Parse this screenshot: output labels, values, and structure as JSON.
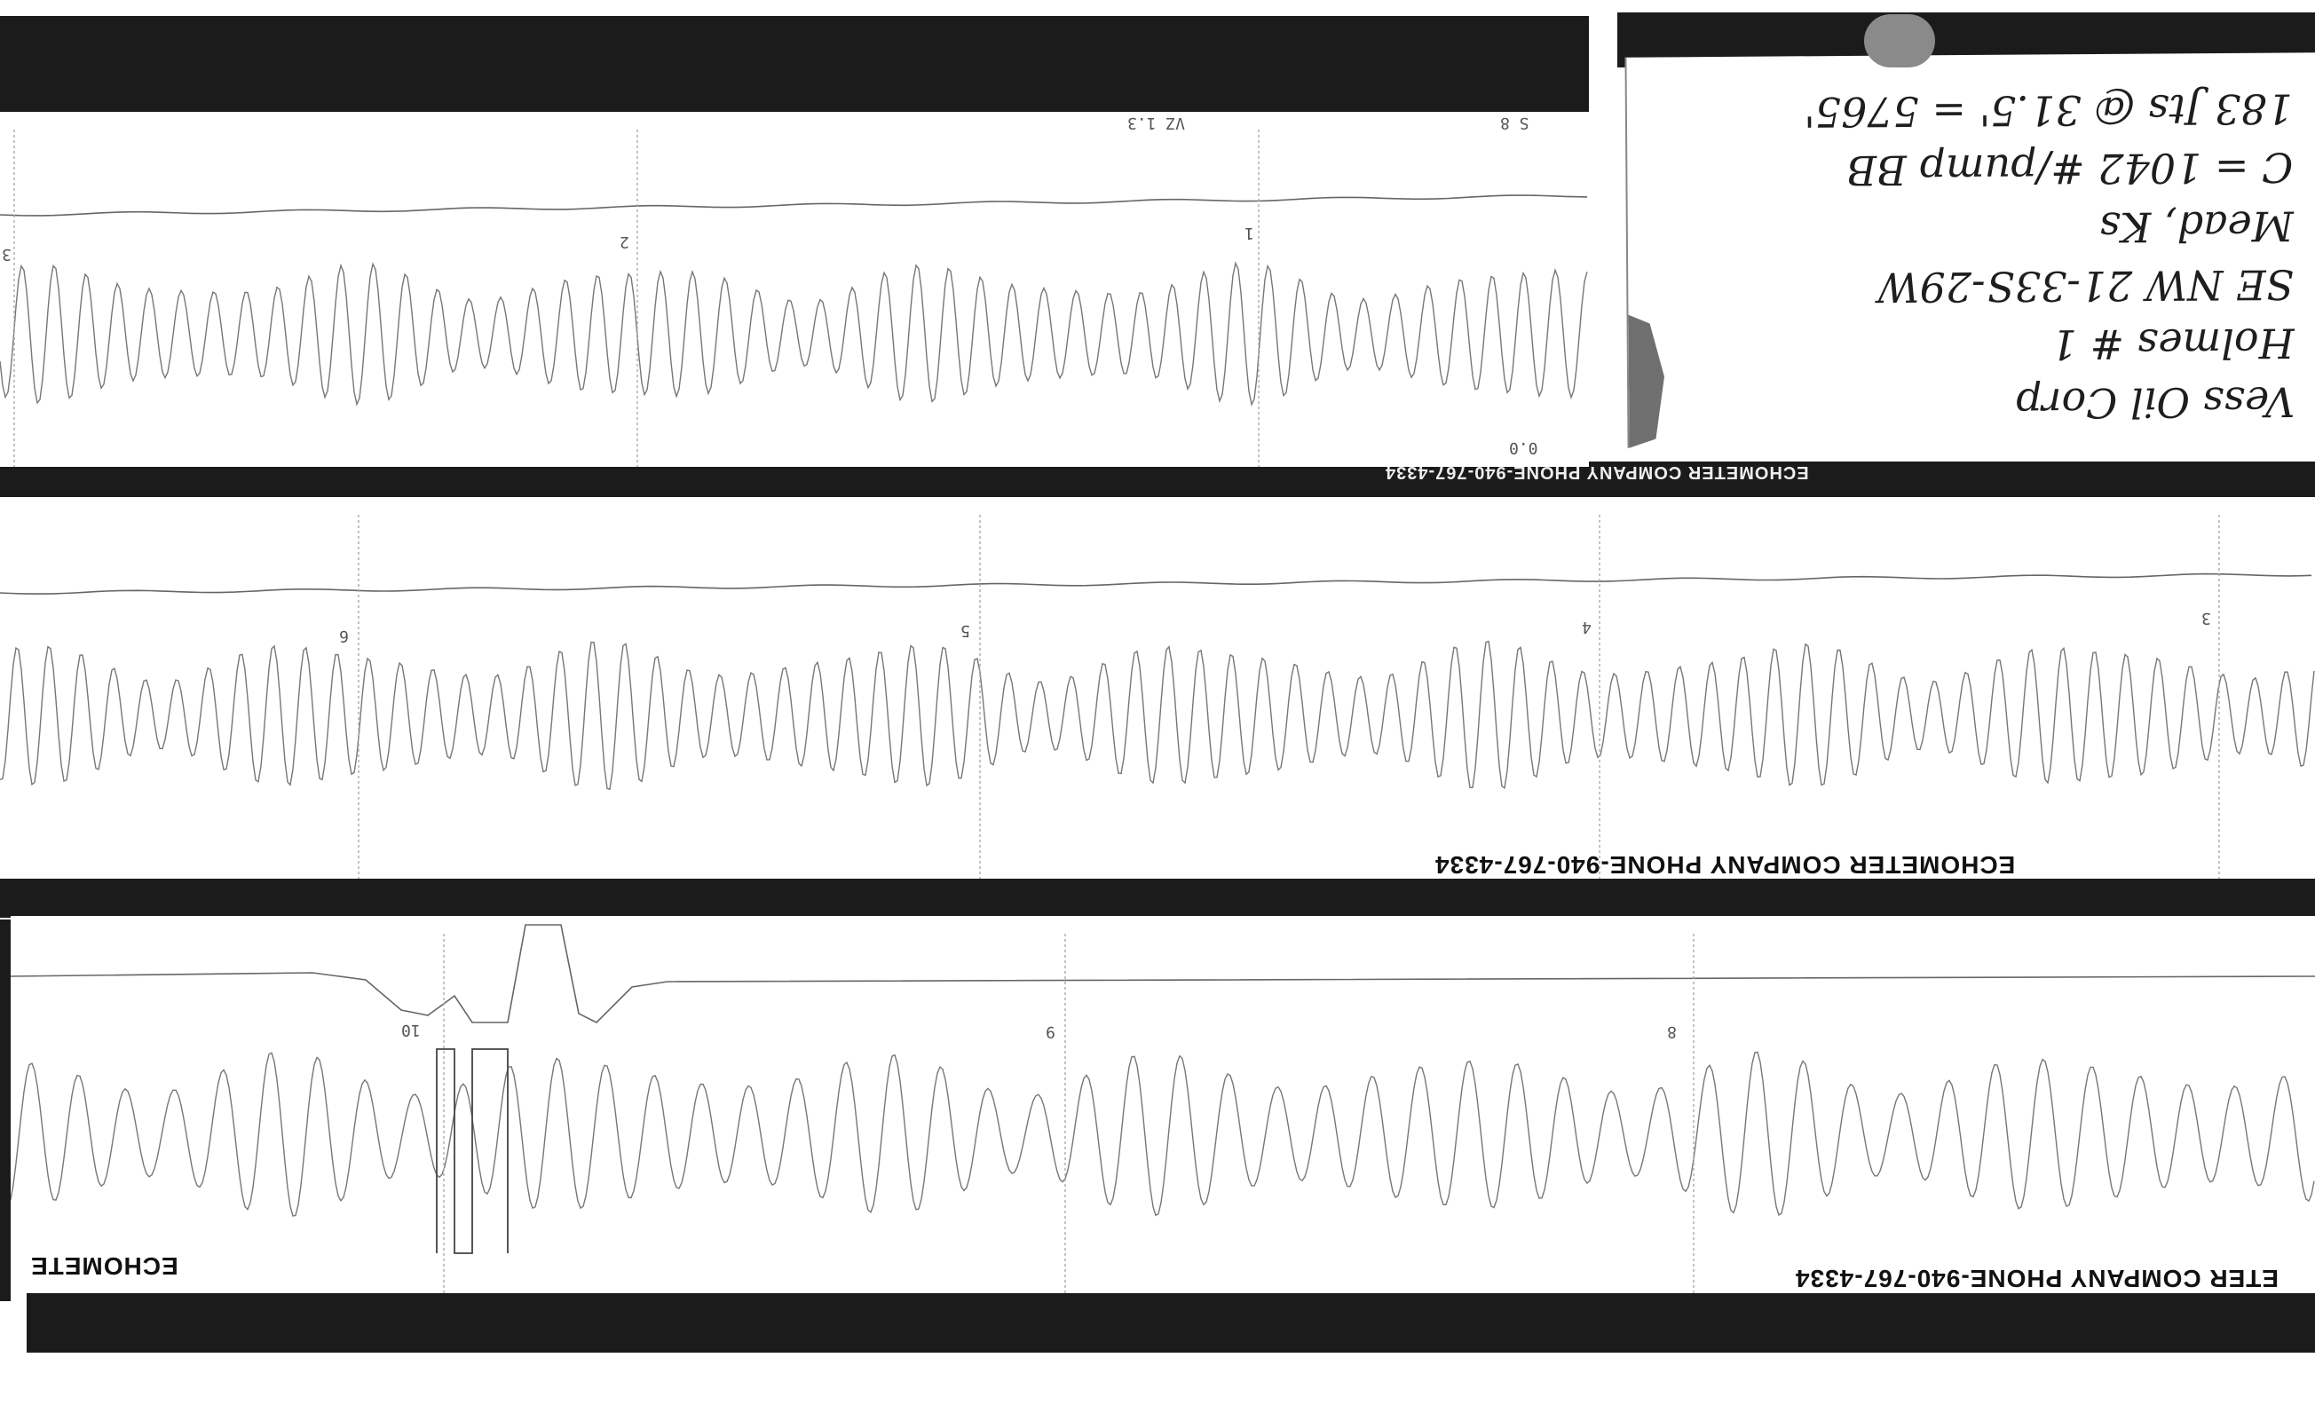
{
  "handwritten_note": {
    "lines": [
      "Vess Oil Corp",
      "Holmes # 1",
      "SE NW 21-33S-29W",
      "Mead, Ks",
      "C = 1042 #/pump BB",
      "183 Jts @ 31.5' = 5765'"
    ]
  },
  "strip_1": {
    "markers": [
      "1",
      "2",
      "3"
    ],
    "footer": "ECHOMETER COMPANY PHONE-940-767-4334",
    "header_fragments": [
      "VZ 1.3",
      "S 8",
      "0.0"
    ]
  },
  "strip_2": {
    "markers": [
      "3",
      "4",
      "5",
      "6"
    ],
    "footer": "ECHOMETER COMPANY PHONE-940-767-4334"
  },
  "strip_3": {
    "markers": [
      "8",
      "9",
      "10"
    ],
    "footer_right": "ETER COMPANY PHONE-940-767-4334",
    "footer_left": "ECHOMETE"
  }
}
